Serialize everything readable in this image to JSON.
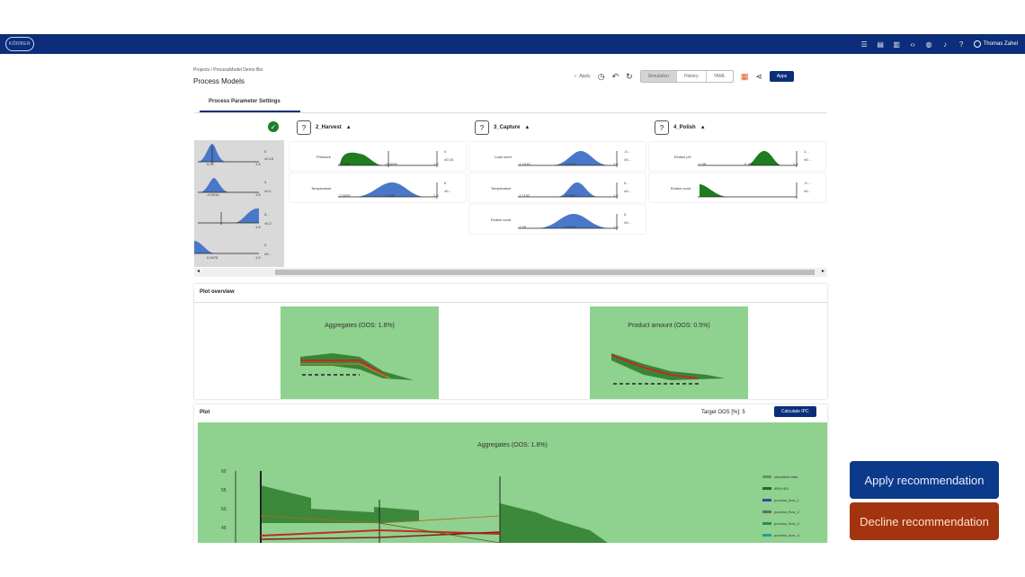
{
  "topbar": {
    "logo": "KÖRBER",
    "icons": [
      "menu-icon",
      "book-icon",
      "document-icon",
      "code-icon",
      "globe-icon",
      "bell-icon",
      "help-icon"
    ],
    "user_name": "Thomas Zahel"
  },
  "breadcrumb": "Projects / ProcessModel Demo Bio",
  "page_title": "Process Models",
  "toolbar": {
    "apply_label": "Apply",
    "segments": [
      "Simulation",
      "History",
      "YAML"
    ],
    "apps_label": "Apps"
  },
  "tabs": [
    "Process Parameter Settings"
  ],
  "columns": [
    {
      "name": "2_Harvest",
      "params": [
        {
          "label": "Pressure",
          "min": "-0.1146",
          "sp": "-0.0638",
          "max": "1.5",
          "val": "0",
          "pm": "±0.15"
        },
        {
          "label": "Temperature",
          "min": "-2.0000",
          "sp": "-0.045",
          "max": "1.5",
          "val": "0",
          "pm": "±0..."
        }
      ]
    },
    {
      "name": "3_Capture",
      "params": [
        {
          "label": "Load cond",
          "min": "-1.1616",
          "sp": "-0.0201",
          "max": "1.5",
          "val": "-0...",
          "pm": "±0..."
        },
        {
          "label": "Temperature",
          "min": "-1.1102",
          "sp": "-0.0002",
          "max": "1.5",
          "val": "0...",
          "pm": "±0..."
        },
        {
          "label": "Elution cond",
          "min": "-1.05",
          "sp": "0.0037",
          "max": "1.5",
          "val": "0",
          "pm": "±0..."
        }
      ]
    },
    {
      "name": "4_Polish",
      "params": [
        {
          "label": "Elution pH",
          "min": "-1.08",
          "sp": "0.7331",
          "max": "1.4",
          "val": "1...",
          "pm": "±0..."
        },
        {
          "label": "Elution cond",
          "min": "",
          "sp": "",
          "max": "",
          "val": "-0...",
          "pm": "±0..."
        }
      ]
    }
  ],
  "left_column": [
    {
      "min": "0.00",
      "max": "1.5",
      "val": "0",
      "pm": "±0.15"
    },
    {
      "min": "-0.0014",
      "max": "1.5",
      "val": "0",
      "pm": "±0.1"
    },
    {
      "min": "",
      "max": "1.5",
      "val": "0...",
      "pm": "±0.2"
    },
    {
      "min": "0.0475",
      "max": "1.5",
      "val": "0",
      "pm": "±0..."
    }
  ],
  "plot_overview": {
    "title": "Plot overview",
    "thumbs": [
      "Aggregates (OOS: 1.8%)",
      "Product amount (OOS: 0.5%)"
    ]
  },
  "plot": {
    "title": "Plot",
    "target_oos": "Target OOS [%]: 5",
    "calc_label": "Calculate IPC",
    "chart_title": "Aggregates (OOS: 1.8%)",
    "y_ticks": [
      "60",
      "55",
      "50",
      "45"
    ],
    "legend": [
      "simulated data",
      "95% HDI",
      "process_flow_1",
      "process_flow_2",
      "process_flow_3",
      "process_flow_4"
    ]
  },
  "recommendation": {
    "apply": "Apply recommendation",
    "decline": "Decline recommendation"
  },
  "colors": {
    "brand": "#0b2d7a",
    "accent_green": "#8fd18f",
    "blue_dist": "#4a78c9",
    "green_dist": "#1e7d1e"
  }
}
